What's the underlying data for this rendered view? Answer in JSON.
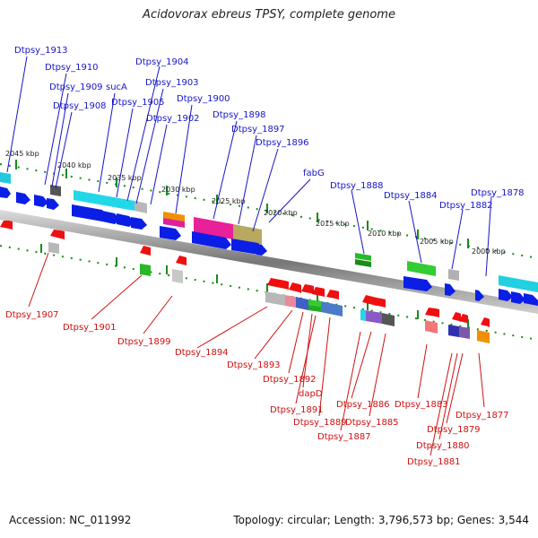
{
  "title": "Acidovorax ebreus TPSY, complete genome",
  "footer": {
    "accession": "Accession: NC_011992",
    "topology": "Topology: circular; Length: 3,796,573 bp; Genes: 3,544"
  },
  "colors": {
    "forward_arrow": "#0a1ee6",
    "reverse_arrow": "#ee1010",
    "forward_label": "#1515c8",
    "reverse_label": "#d01010",
    "backbone": "#8a8a8a",
    "tick": "#1a8a1a"
  },
  "scale_labels": [
    "2045 kbp",
    "2040 kbp",
    "2035 kbp",
    "2030 kbp",
    "2025 kbp",
    "2020 kbp",
    "2015 kbp",
    "2010 kbp",
    "2005 kbp",
    "2000 kbp"
  ],
  "top_labels": [
    "Dtpsy_1913",
    "Dtpsy_1910",
    "Dtpsy_1909",
    "Dtpsy_1908",
    "sucA",
    "Dtpsy_1905",
    "Dtpsy_1904",
    "Dtpsy_1903",
    "Dtpsy_1902",
    "Dtpsy_1900",
    "Dtpsy_1898",
    "Dtpsy_1897",
    "Dtpsy_1896",
    "fabG",
    "Dtpsy_1888",
    "Dtpsy_1884",
    "Dtpsy_1882",
    "Dtpsy_1878"
  ],
  "bottom_labels": [
    "Dtpsy_1907",
    "Dtpsy_1901",
    "Dtpsy_1899",
    "Dtpsy_1894",
    "Dtpsy_1893",
    "Dtpsy_1892",
    "dapD",
    "Dtpsy_1891",
    "Dtpsy_1889",
    "Dtpsy_1887",
    "Dtpsy_1886",
    "Dtpsy_1885",
    "Dtpsy_1883",
    "Dtpsy_1877",
    "Dtpsy_1879",
    "Dtpsy_1880",
    "Dtpsy_1881"
  ]
}
